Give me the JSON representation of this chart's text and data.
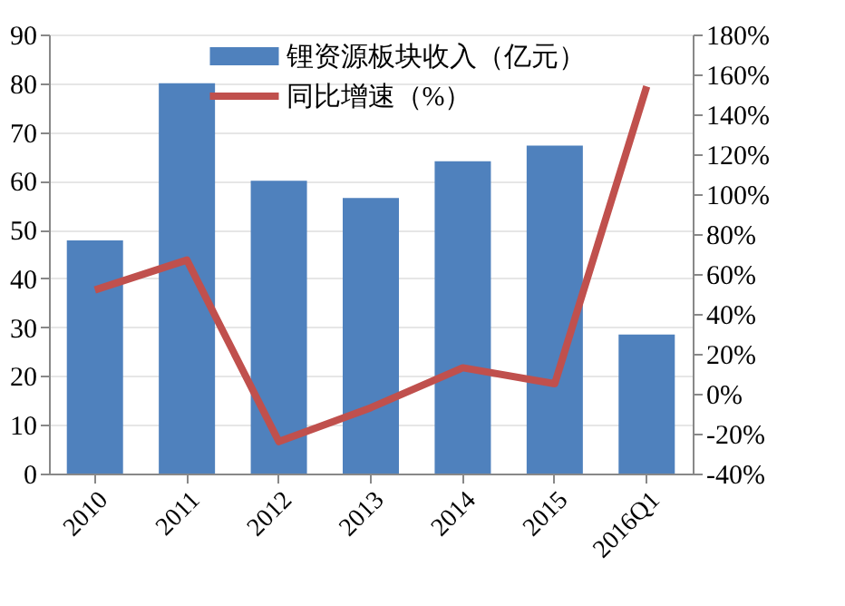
{
  "chart_data": {
    "type": "bar",
    "categories": [
      "2010",
      "2011",
      "2012",
      "2013",
      "2014",
      "2015",
      "2016Q1"
    ],
    "series": [
      {
        "name": "锂资源板块收入（亿元）",
        "color": "#4f81bd",
        "values": [
          47.8,
          80,
          60,
          56.5,
          64,
          67.2,
          28.5
        ]
      },
      {
        "name": "同比增速（%）",
        "type": "line",
        "axis": "y2",
        "color": "#c0504d",
        "values": [
          52,
          67,
          -24,
          -7,
          13,
          5,
          154
        ]
      }
    ],
    "ylim": [
      0,
      90
    ],
    "yticks": [
      0,
      10,
      20,
      30,
      40,
      50,
      60,
      70,
      80,
      90
    ],
    "y2lim": [
      -40,
      180
    ],
    "y2ticks": [
      {
        "value": -40,
        "label": "-40%"
      },
      {
        "value": -20,
        "label": "-20%"
      },
      {
        "value": 0,
        "label": "0%"
      },
      {
        "value": 20,
        "label": "20%"
      },
      {
        "value": 40,
        "label": "40%"
      },
      {
        "value": 60,
        "label": "60%"
      },
      {
        "value": 80,
        "label": "80%"
      },
      {
        "value": 100,
        "label": "100%"
      },
      {
        "value": 120,
        "label": "120%"
      },
      {
        "value": 140,
        "label": "140%"
      },
      {
        "value": 160,
        "label": "160%"
      },
      {
        "value": 180,
        "label": "180%"
      }
    ],
    "grid": "y",
    "legend": "top",
    "marker": "none",
    "line_style": "solid"
  }
}
